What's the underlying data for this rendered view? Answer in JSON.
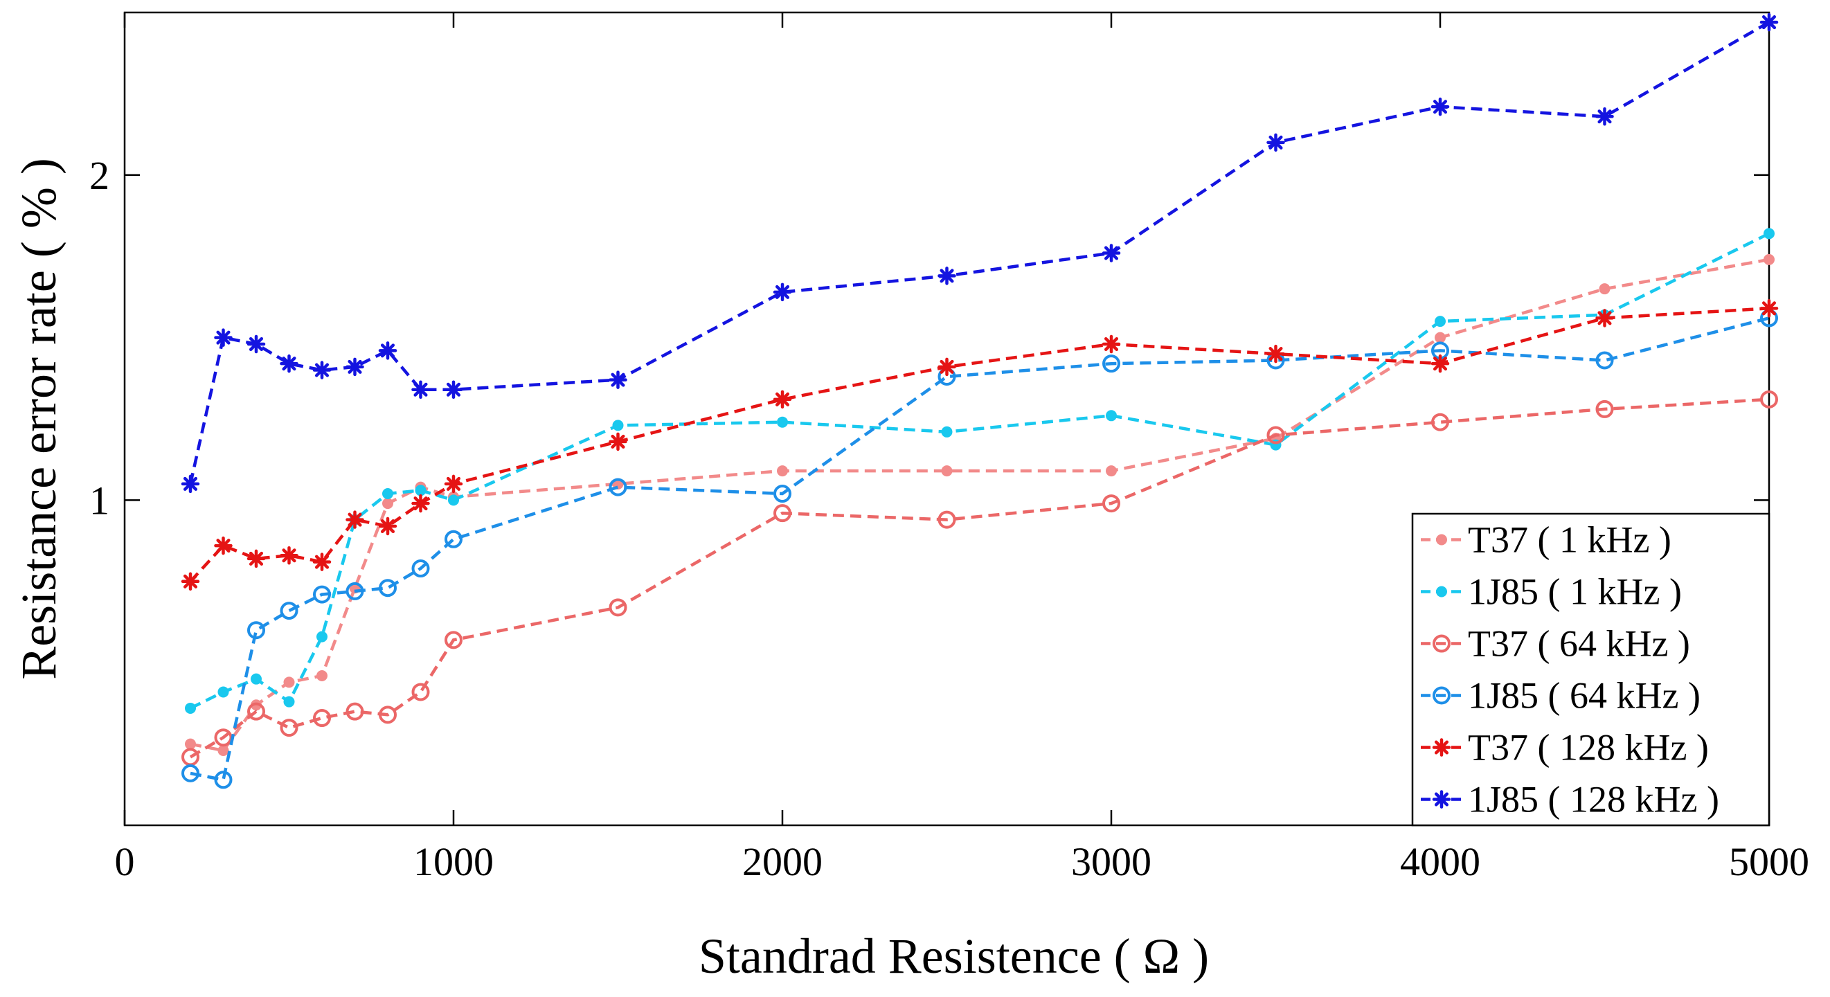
{
  "chart_data": {
    "type": "line",
    "title": "",
    "xlabel": "Standrad Resistence ( Ω )",
    "ylabel": "Resistance error rate ( % )",
    "xlim": [
      0,
      5000
    ],
    "ylim": [
      0,
      2.5
    ],
    "xticks": [
      0,
      1000,
      2000,
      3000,
      4000,
      5000
    ],
    "xtick_labels": [
      "0",
      "1000",
      "2000",
      "3000",
      "4000",
      "5000"
    ],
    "yticks": [
      1,
      2
    ],
    "ytick_labels": [
      "1",
      "2"
    ],
    "grid": false,
    "legend_position": "bottom-right",
    "x": [
      200,
      300,
      400,
      500,
      600,
      700,
      800,
      900,
      1000,
      1500,
      2000,
      2500,
      3000,
      3500,
      4000,
      4500,
      5000
    ],
    "series": [
      {
        "name": "T37 ( 1 kHz )",
        "color": "#F28A8A",
        "marker": "dot",
        "values": [
          0.25,
          0.23,
          0.37,
          0.44,
          0.46,
          0.73,
          0.99,
          1.04,
          1.01,
          1.05,
          1.09,
          1.09,
          1.09,
          1.19,
          1.5,
          1.65,
          1.74
        ]
      },
      {
        "name": "1J85 ( 1 kHz )",
        "color": "#19C8EE",
        "marker": "dot",
        "values": [
          0.36,
          0.41,
          0.45,
          0.38,
          0.58,
          0.94,
          1.02,
          1.03,
          1.0,
          1.23,
          1.24,
          1.21,
          1.26,
          1.17,
          1.55,
          1.57,
          1.82
        ]
      },
      {
        "name": "T37 ( 64 kHz )",
        "color": "#EB6767",
        "marker": "circle",
        "values": [
          0.21,
          0.27,
          0.35,
          0.3,
          0.33,
          0.35,
          0.34,
          0.41,
          0.57,
          0.67,
          0.96,
          0.94,
          0.99,
          1.2,
          1.24,
          1.28,
          1.31
        ]
      },
      {
        "name": "1J85 ( 64 kHz )",
        "color": "#1E8FE8",
        "marker": "circle",
        "values": [
          0.16,
          0.14,
          0.6,
          0.66,
          0.71,
          0.72,
          0.73,
          0.79,
          0.88,
          1.04,
          1.02,
          1.38,
          1.42,
          1.43,
          1.46,
          1.43,
          1.56
        ]
      },
      {
        "name": "T37 ( 128 kHz )",
        "color": "#E51414",
        "marker": "star",
        "values": [
          0.75,
          0.86,
          0.82,
          0.83,
          0.81,
          0.94,
          0.92,
          0.99,
          1.05,
          1.18,
          1.31,
          1.41,
          1.48,
          1.45,
          1.42,
          1.56,
          1.59
        ]
      },
      {
        "name": "1J85 ( 128 kHz )",
        "color": "#1414E0",
        "marker": "star",
        "values": [
          1.05,
          1.5,
          1.48,
          1.42,
          1.4,
          1.41,
          1.46,
          1.34,
          1.34,
          1.37,
          1.64,
          1.69,
          1.76,
          2.1,
          2.21,
          2.18,
          2.47
        ]
      }
    ]
  }
}
